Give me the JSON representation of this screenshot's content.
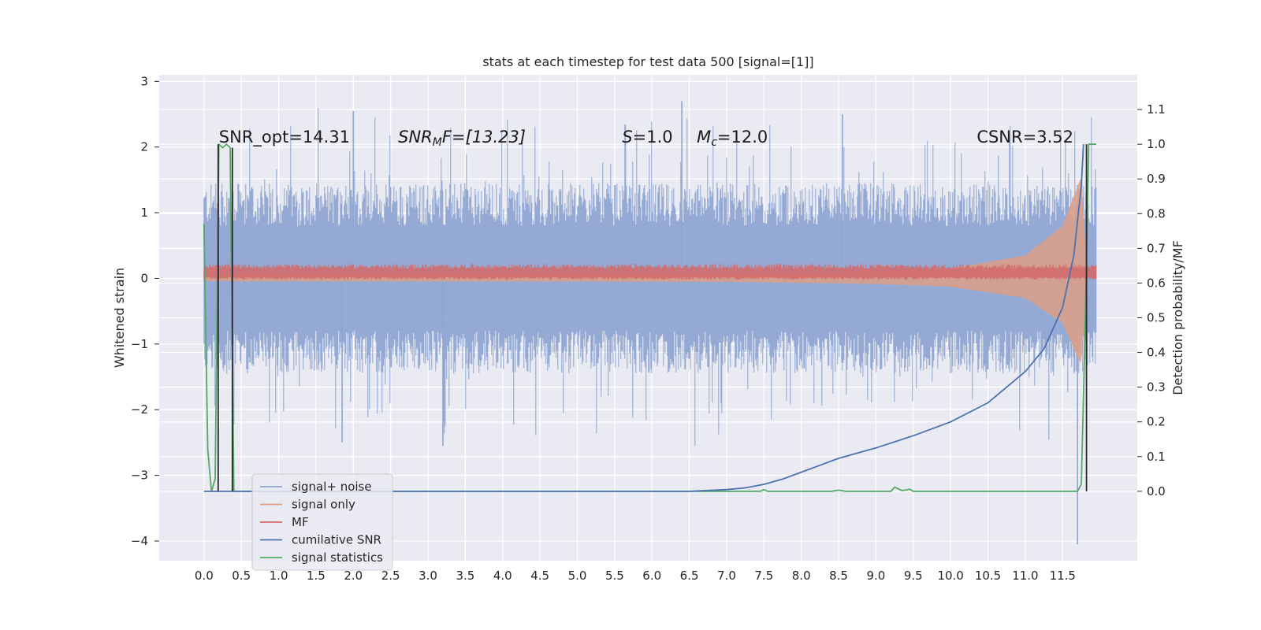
{
  "chart_data": {
    "type": "line",
    "title": "stats at each timestep for test data 500 [signal=[1]]",
    "xlabel": "",
    "ylabel_left": "Whitened strain",
    "ylabel_right": "Detection probability/MF",
    "xlim": [
      -0.6,
      12.5
    ],
    "ylim_left": [
      -4.3,
      3.1
    ],
    "ylim_right": [
      -0.2,
      1.2
    ],
    "x_ticks": [
      "0.0",
      "0.5",
      "1.0",
      "1.5",
      "2.0",
      "2.5",
      "3.0",
      "3.5",
      "4.0",
      "4.5",
      "5.0",
      "5.5",
      "6.0",
      "6.5",
      "7.0",
      "7.5",
      "8.0",
      "8.5",
      "9.0",
      "9.5",
      "10.0",
      "10.5",
      "11.0",
      "11.5"
    ],
    "y_ticks_left": [
      "3",
      "2",
      "1",
      "0",
      "−1",
      "−2",
      "−3",
      "−4"
    ],
    "y_ticks_right": [
      "1.1",
      "1.0",
      "0.9",
      "0.8",
      "0.7",
      "0.6",
      "0.5",
      "0.4",
      "0.3",
      "0.2",
      "0.1",
      "0.0"
    ],
    "grid": true,
    "legend_position": "lower-left",
    "annotations": {
      "snr_opt": "SNR_opt=14.31",
      "snr_mf": "SNR",
      "snr_mf_sub": "M",
      "snr_mf_rest": "F=[13.23]",
      "s_sym": "S",
      "s_rest": "=1.0",
      "mc_sym": "M",
      "mc_sub": "c",
      "mc_rest": "=12.0",
      "csnr": "CSNR=3.52"
    },
    "series": [
      {
        "name": "signal+ noise",
        "color": "#8fa6d2",
        "axis": "left",
        "amplitude_typical": 1.45,
        "peak_values": [
          2.55,
          2.7,
          2.5,
          -2.5,
          -2.55,
          -4.05
        ],
        "x_range": [
          0.0,
          11.95
        ]
      },
      {
        "name": "signal only",
        "color": "#dd9f86",
        "axis": "left",
        "envelope": [
          [
            0.0,
            0.05
          ],
          [
            7.0,
            0.06
          ],
          [
            9.0,
            0.1
          ],
          [
            10.0,
            0.15
          ],
          [
            11.0,
            0.35
          ],
          [
            11.5,
            0.8
          ],
          [
            11.75,
            1.55
          ],
          [
            11.82,
            0.2
          ]
        ]
      },
      {
        "name": "MF",
        "color": "#d16c6d",
        "axis": "left",
        "center": 0.1,
        "amplitude": 0.12,
        "x_range": [
          0.0,
          11.95
        ]
      },
      {
        "name": "cumilative SNR",
        "color": "#4c72b0",
        "axis": "right",
        "x": [
          0.0,
          6.0,
          6.5,
          7.0,
          7.25,
          7.5,
          7.75,
          8.0,
          8.25,
          8.5,
          9.0,
          9.5,
          10.0,
          10.5,
          11.0,
          11.25,
          11.5,
          11.65,
          11.75,
          11.78
        ],
        "y": [
          0.0,
          0.0,
          0.0,
          0.005,
          0.01,
          0.02,
          0.035,
          0.055,
          0.075,
          0.095,
          0.125,
          0.16,
          0.2,
          0.255,
          0.345,
          0.41,
          0.53,
          0.68,
          0.88,
          1.0
        ]
      },
      {
        "name": "signal statistics",
        "color": "#55a868",
        "axis": "right",
        "x": [
          0.0,
          0.05,
          0.1,
          0.15,
          0.2,
          0.25,
          0.3,
          0.35,
          0.4,
          0.45,
          1.0,
          5.0,
          7.45,
          7.5,
          7.55,
          8.4,
          8.5,
          8.6,
          9.2,
          9.25,
          9.35,
          9.45,
          9.5,
          10.0,
          11.0,
          11.7,
          11.75,
          11.8,
          11.85,
          11.9,
          11.95
        ],
        "y": [
          0.77,
          0.12,
          0.0,
          0.035,
          1.0,
          0.99,
          1.0,
          0.99,
          0.0,
          0.0,
          0.0,
          0.0,
          0.0,
          0.005,
          0.0,
          0.0,
          0.003,
          0.0,
          0.0,
          0.012,
          0.002,
          0.006,
          0.0,
          0.0,
          0.0,
          0.0,
          0.02,
          0.45,
          1.0,
          1.0,
          1.0
        ]
      },
      {
        "name": "detection markers",
        "color": "#2a2a2a",
        "axis": "right",
        "segments": [
          [
            0.19,
            0.0,
            0.19,
            1.0
          ],
          [
            0.38,
            0.0,
            0.38,
            0.99
          ],
          [
            11.82,
            0.0,
            11.82,
            1.0
          ]
        ],
        "legend": false
      }
    ]
  }
}
